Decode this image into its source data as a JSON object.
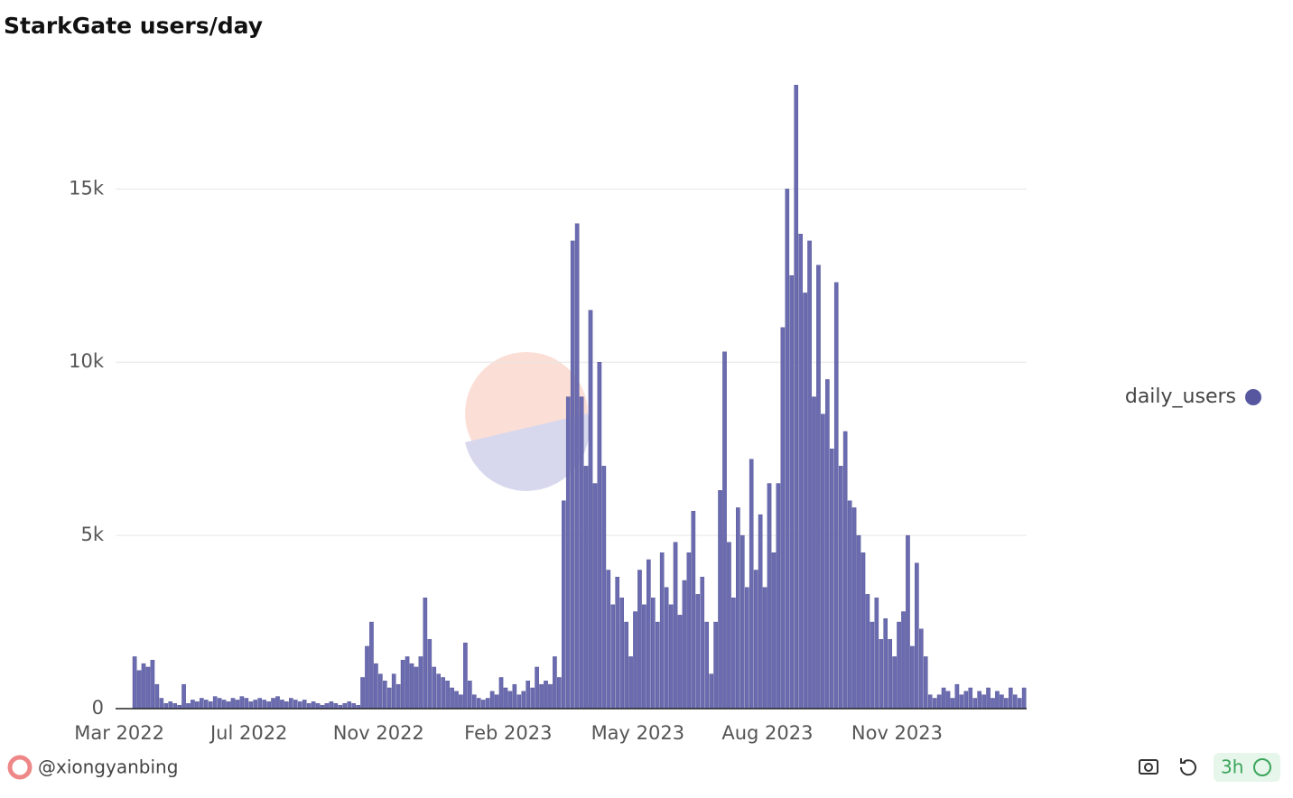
{
  "chart_data": {
    "type": "bar",
    "title": "StarkGate users/day",
    "series": [
      {
        "name": "daily_users",
        "color": "#6b6bb0",
        "values": [
          1500,
          1100,
          1300,
          1200,
          1400,
          700,
          300,
          150,
          200,
          150,
          100,
          700,
          150,
          250,
          200,
          300,
          250,
          200,
          350,
          300,
          250,
          200,
          300,
          250,
          350,
          300,
          200,
          250,
          300,
          250,
          200,
          300,
          350,
          250,
          200,
          300,
          250,
          200,
          250,
          150,
          200,
          150,
          100,
          150,
          200,
          150,
          100,
          150,
          200,
          150,
          100,
          900,
          1800,
          2500,
          1300,
          1000,
          800,
          600,
          1000,
          700,
          1400,
          1500,
          1300,
          1200,
          1500,
          3200,
          2000,
          1200,
          1000,
          900,
          800,
          600,
          500,
          400,
          1900,
          800,
          400,
          300,
          250,
          300,
          500,
          400,
          900,
          600,
          500,
          700,
          400,
          500,
          800,
          600,
          1200,
          700,
          800,
          700,
          1500,
          900,
          6000,
          9000,
          13500,
          14000,
          9000,
          7000,
          11500,
          6500,
          10000,
          7000,
          4000,
          3000,
          3800,
          3200,
          2500,
          1500,
          2800,
          4000,
          3000,
          4300,
          3200,
          2500,
          4500,
          3500,
          3000,
          4800,
          2700,
          3700,
          4500,
          5700,
          3300,
          3800,
          2500,
          1000,
          2500,
          6300,
          10300,
          4800,
          3200,
          5800,
          5000,
          3500,
          7200,
          4000,
          5600,
          3500,
          6500,
          4500,
          6500,
          11000,
          15000,
          12500,
          18000,
          13700,
          12000,
          13500,
          9000,
          12800,
          8500,
          9500,
          7500,
          12300,
          7000,
          8000,
          6000,
          5800,
          5000,
          4500,
          3300,
          2500,
          3200,
          2000,
          2600,
          2000,
          1500,
          2500,
          2800,
          5000,
          1800,
          4200,
          2300,
          1500,
          400,
          300,
          400,
          600,
          500,
          300,
          700,
          400,
          500,
          600,
          300,
          500,
          400,
          600,
          300,
          500,
          400,
          300,
          600,
          400,
          300,
          600
        ]
      }
    ],
    "xlim": [
      0,
      200
    ],
    "xticks": [
      {
        "value": -3,
        "label": "Mar 2022"
      },
      {
        "value": 26,
        "label": "Jul 2022"
      },
      {
        "value": 55,
        "label": "Nov 2022"
      },
      {
        "value": 84,
        "label": "Feb 2023"
      },
      {
        "value": 113,
        "label": "May 2023"
      },
      {
        "value": 142,
        "label": "Aug 2023"
      },
      {
        "value": 171,
        "label": "Nov 2023"
      }
    ],
    "ylim": [
      0,
      18500
    ],
    "yticks": [
      0,
      {
        "value": 5000,
        "label": "5k"
      },
      {
        "value": 10000,
        "label": "10k"
      },
      {
        "value": 15000,
        "label": "15k"
      }
    ],
    "grid": true,
    "legend": "right"
  },
  "footer": {
    "author": "@xiongyanbing",
    "age": "3h"
  }
}
